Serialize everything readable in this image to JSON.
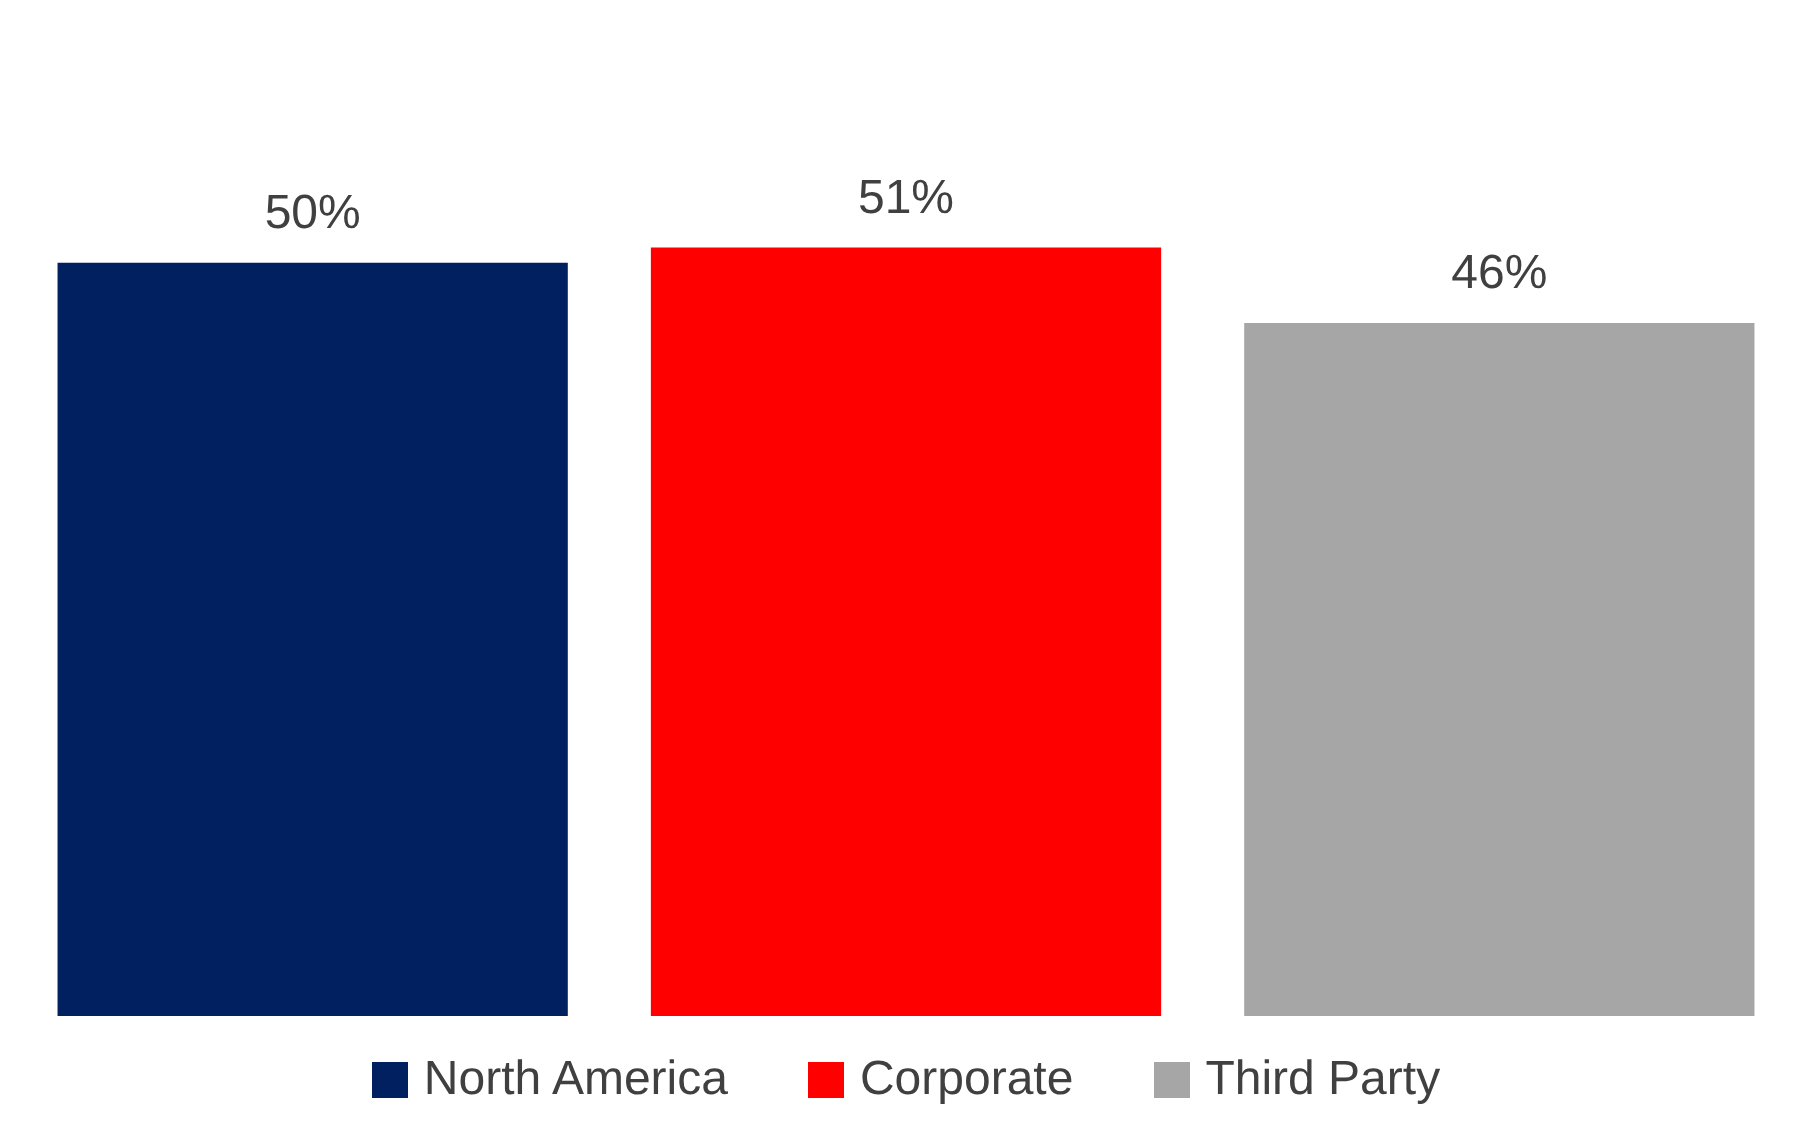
{
  "chart_data": {
    "type": "bar",
    "categories": [
      null,
      null,
      null
    ],
    "series": [
      {
        "name": "North America",
        "color": "#002060",
        "values": [
          50,
          null,
          null
        ],
        "value_labels": [
          "50%",
          null,
          null
        ]
      },
      {
        "name": "Corporate",
        "color": "#ff0000",
        "values": [
          null,
          51,
          null
        ],
        "value_labels": [
          null,
          "51%",
          null
        ]
      },
      {
        "name": "Third Party",
        "color": "#a6a6a6",
        "values": [
          null,
          null,
          46
        ],
        "value_labels": [
          null,
          null,
          "46%"
        ]
      }
    ],
    "stacked": true,
    "legend": "bottom"
  }
}
